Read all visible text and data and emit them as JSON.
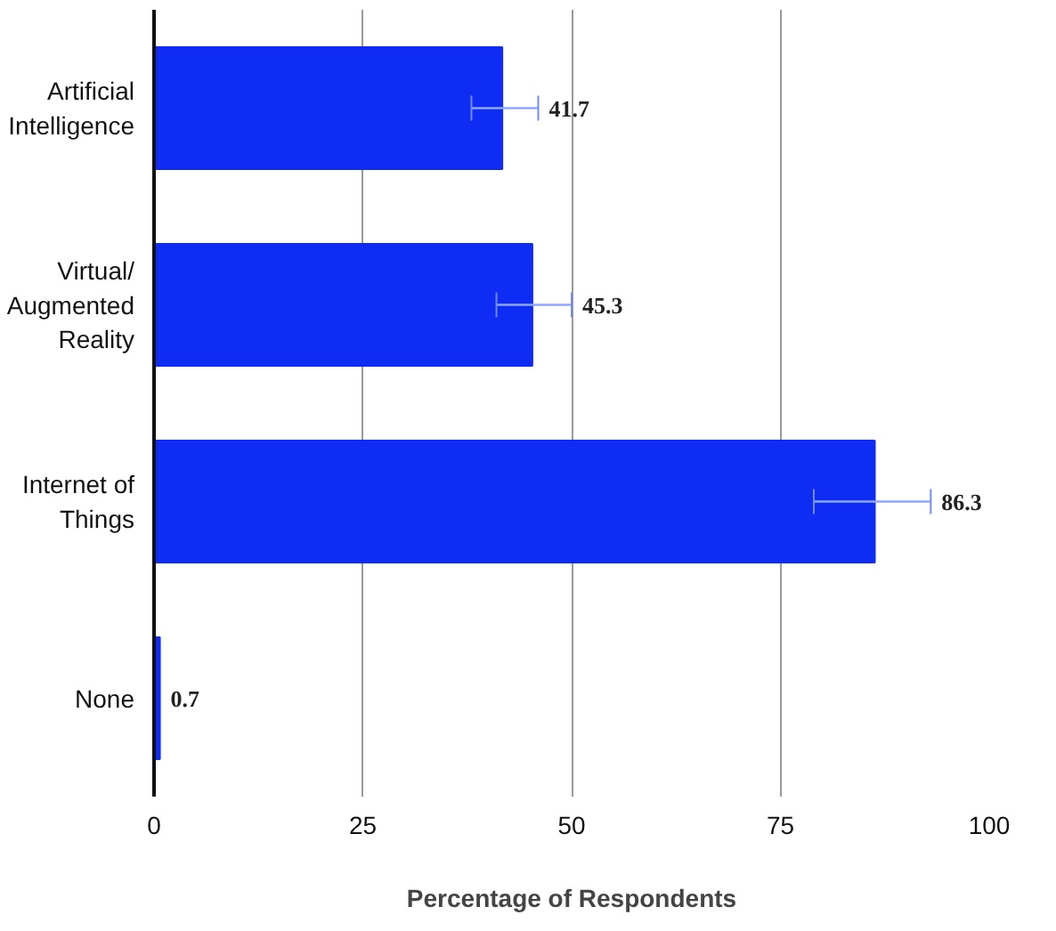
{
  "chart_data": {
    "type": "bar",
    "orientation": "horizontal",
    "xlabel": "Percentage of Respondents",
    "categories": [
      "Artificial Intelligence",
      "Virtual/ Augmented Reality",
      "Internet of Things",
      "None"
    ],
    "values": [
      41.7,
      45.3,
      86.3,
      0.7
    ],
    "errors": [
      [
        38,
        46
      ],
      [
        41,
        50
      ],
      [
        79,
        93
      ],
      null
    ],
    "color": "#0f2cf5",
    "xlim": [
      0,
      100
    ],
    "xticks": [
      0,
      25,
      50,
      75,
      100
    ],
    "grid": "x",
    "data_labels": true
  }
}
